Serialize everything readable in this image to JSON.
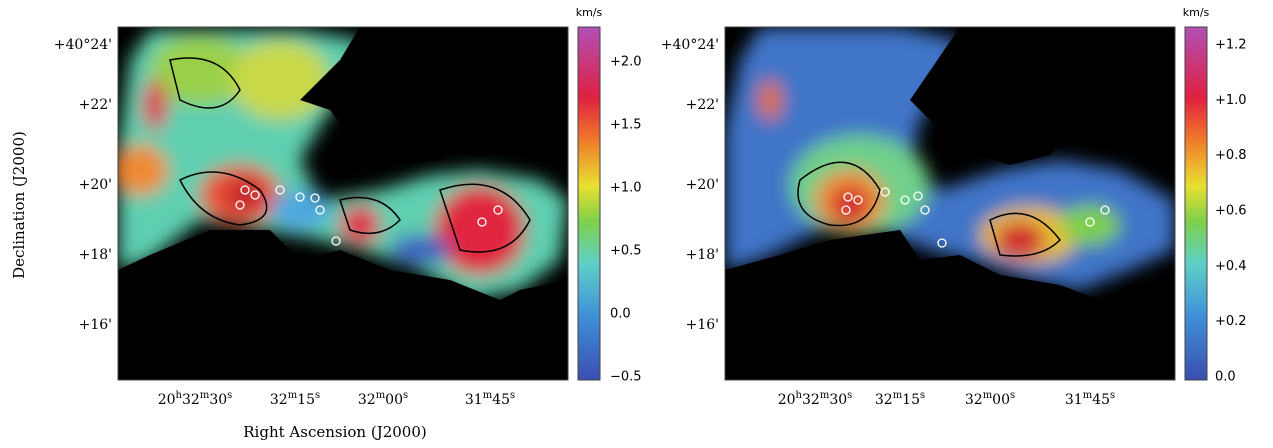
{
  "y_label": "Declination (J2000)",
  "x_label": "Right Ascension (J2000)",
  "panels": [
    {
      "y_ticks": [
        "+40°24'",
        "+22'",
        "+20'",
        "+18'",
        "+16'"
      ],
      "x_ticks": [
        "20h32m30s",
        "32m15s",
        "32m00s",
        "31m45s"
      ],
      "colorbar_unit": "km/s",
      "colorbar_ticks": [
        "+2.0",
        "+1.5",
        "+1.0",
        "+0.5",
        "0.0",
        "−0.5"
      ]
    },
    {
      "y_ticks": [
        "+40°24'",
        "+22'",
        "+20'",
        "+18'",
        "+16'"
      ],
      "x_ticks": [
        "20h32m30s",
        "32m15s",
        "32m00s",
        "31m45s"
      ],
      "colorbar_unit": "km/s",
      "colorbar_ticks": [
        "+1.2",
        "+1.0",
        "+0.8",
        "+0.6",
        "+0.4",
        "+0.2",
        "0.0"
      ]
    }
  ]
}
